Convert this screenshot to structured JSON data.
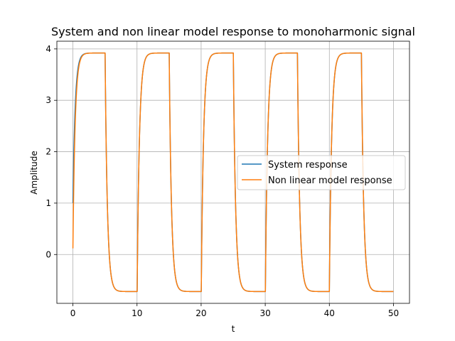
{
  "chart_data": {
    "type": "line",
    "title": "System and non linear model response to monoharmonic signal",
    "xlabel": "t",
    "ylabel": "Amplitude",
    "xlim": [
      -2.5,
      52.5
    ],
    "ylim": [
      -0.95,
      4.15
    ],
    "x_ticks": [
      0,
      10,
      20,
      30,
      40,
      50
    ],
    "y_ticks": [
      0,
      1,
      2,
      3,
      4
    ],
    "x_tick_labels": [
      "0",
      "10",
      "20",
      "30",
      "40",
      "50"
    ],
    "y_tick_labels": [
      "0",
      "1",
      "2",
      "3",
      "4"
    ],
    "grid": true,
    "legend_position": "center-right",
    "signal": {
      "period": 10,
      "high_duration": 5,
      "high_level": 3.92,
      "low_level": -0.72,
      "rise_time_constant": 0.35,
      "fall_time_constant": 0.35,
      "x_start": 0,
      "x_end": 50
    },
    "series": [
      {
        "name": "System response",
        "color": "#1f77b4",
        "initial_value": 1.0
      },
      {
        "name": "Non linear model response",
        "color": "#ff7f0e",
        "initial_value": 0.12
      }
    ]
  }
}
